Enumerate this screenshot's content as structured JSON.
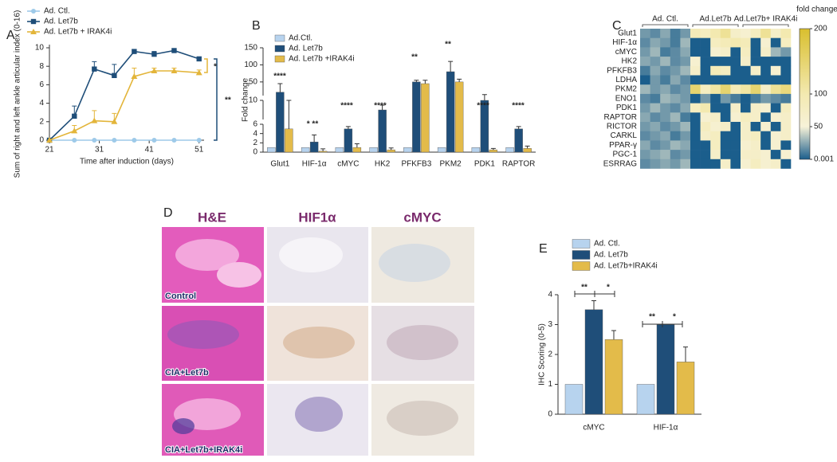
{
  "chart_data": [
    {
      "type": "line",
      "panel": "A",
      "y_label": "Sum of right and left ankle articular index (0-16)",
      "x_label": "Time after induction (days)",
      "x": [
        21,
        26,
        30,
        34,
        38,
        42,
        46,
        51
      ],
      "xlim": [
        21,
        52
      ],
      "xticks": [
        21,
        31,
        41,
        51
      ],
      "ylim": [
        0,
        10
      ],
      "yticks": [
        0,
        2,
        4,
        6,
        8,
        10
      ],
      "series": [
        {
          "name": "Ad. Ctl.",
          "color": "#9ecae9",
          "marker": "circle",
          "values": [
            0,
            0,
            0,
            0,
            0,
            0,
            0,
            0
          ]
        },
        {
          "name": "Ad. Let7b",
          "color": "#1f4e79",
          "marker": "square",
          "values": [
            0,
            2.6,
            7.7,
            7.0,
            9.6,
            9.3,
            9.7,
            8.8
          ],
          "errors": [
            0,
            1.1,
            0.8,
            1.2,
            0.2,
            0.3,
            0.2,
            0.2
          ]
        },
        {
          "name": "Ad. Let7b + IRAK4i",
          "color": "#e3b53a",
          "marker": "triangle",
          "values": [
            0,
            1.0,
            2.1,
            2.0,
            6.9,
            7.5,
            7.5,
            7.3
          ],
          "errors": [
            0,
            0.6,
            1.1,
            0.9,
            0.9,
            0.3,
            0.3,
            0.3
          ]
        }
      ],
      "annotations": [
        "*",
        "**"
      ]
    },
    {
      "type": "bar",
      "panel": "B",
      "y_label": "Fold change",
      "categories": [
        "Glut1",
        "HIF-1α",
        "cMYC",
        "HK2",
        "PFKFB3",
        "PKM2",
        "PDK1",
        "RAPTOR"
      ],
      "ylim": [
        0,
        150
      ],
      "y_segments": [
        [
          0,
          6
        ],
        [
          6,
          10
        ],
        [
          10,
          150
        ]
      ],
      "yticks": [
        0,
        2,
        4,
        6,
        10,
        50,
        100,
        150
      ],
      "series": [
        {
          "name": "Ad.Ctl.",
          "color": "#b7d3ee",
          "values": [
            1,
            1,
            1,
            1,
            1,
            1,
            1,
            1
          ]
        },
        {
          "name": "Ad. Let7b",
          "color": "#1f4e79",
          "values": [
            20,
            2.2,
            5,
            8,
            50,
            80,
            10,
            5
          ],
          "errors": [
            25,
            1.5,
            0.5,
            1,
            5,
            30,
            3,
            0.5
          ]
        },
        {
          "name": "Ad. Let7b +IRAK4i",
          "color": "#e3bb4a",
          "values": [
            5,
            0.2,
            1,
            0.5,
            45,
            50,
            0.5,
            0.8
          ],
          "errors": [
            5,
            0.5,
            0.8,
            0.4,
            10,
            8,
            0.3,
            0.5
          ]
        }
      ],
      "annotations": [
        "****",
        "* **",
        "****",
        "****",
        "**",
        "**",
        "****",
        "****"
      ]
    },
    {
      "type": "heatmap",
      "panel": "C",
      "colorbar_label": "fold change",
      "row_labels": [
        "Glut1",
        "HIF-1α",
        "cMYC",
        "HK2",
        "PFKFB3",
        "LDHA",
        "PKM2",
        "ENO1",
        "PDK1",
        "RAPTOR",
        "RICTOR",
        "CARKL",
        "PPAR-γ",
        "PGC-1",
        "ESRRAG"
      ],
      "column_groups": [
        "Ad. Ctl.",
        "Ad.Let7b",
        "Ad.Let7b+ IRAK4i"
      ],
      "color_stops": [
        {
          "value": 0.001,
          "color": "#1b5e8c"
        },
        {
          "value": 50,
          "color": "#f7f2d8"
        },
        {
          "value": 100,
          "color": "#f3e9b0"
        },
        {
          "value": 200,
          "color": "#d9bf2e"
        }
      ],
      "colorbar_ticks": [
        0.001,
        50,
        100,
        200
      ],
      "values": [
        [
          20,
          15,
          25,
          10,
          20,
          90,
          80,
          100,
          120,
          70,
          60,
          80,
          120,
          70,
          100
        ],
        [
          15,
          25,
          20,
          10,
          30,
          0.001,
          0.001,
          80,
          90,
          100,
          90,
          0.001,
          60,
          0.001,
          80
        ],
        [
          20,
          30,
          10,
          15,
          25,
          0.001,
          0.001,
          60,
          70,
          0.001,
          80,
          0.001,
          70,
          30,
          20
        ],
        [
          25,
          20,
          30,
          15,
          20,
          60,
          0.001,
          0.001,
          0.001,
          0.001,
          70,
          0.001,
          0.001,
          0.001,
          0.001
        ],
        [
          10,
          25,
          15,
          20,
          30,
          70,
          0.001,
          90,
          80,
          0.001,
          0.001,
          70,
          0.001,
          60,
          0.001
        ],
        [
          0.001,
          20,
          10,
          25,
          15,
          0.001,
          0.001,
          0.001,
          0.001,
          0.001,
          0.001,
          0.001,
          0.001,
          0.001,
          0.001
        ],
        [
          30,
          20,
          25,
          15,
          20,
          150,
          80,
          110,
          150,
          90,
          110,
          150,
          70,
          120,
          140
        ],
        [
          15,
          10,
          30,
          25,
          20,
          0.001,
          20,
          0.001,
          20,
          10,
          0.001,
          10,
          20,
          15,
          10
        ],
        [
          20,
          30,
          20,
          15,
          25,
          80,
          100,
          0.001,
          0.001,
          70,
          0.001,
          70,
          60,
          0.001,
          80
        ],
        [
          25,
          15,
          20,
          30,
          10,
          0.001,
          60,
          70,
          0.001,
          60,
          80,
          70,
          0.001,
          60,
          70
        ],
        [
          20,
          25,
          15,
          20,
          30,
          0.001,
          80,
          60,
          70,
          0.001,
          70,
          0.001,
          60,
          0.001,
          70
        ],
        [
          15,
          20,
          25,
          10,
          20,
          0.001,
          70,
          80,
          0.001,
          0.001,
          70,
          80,
          0.001,
          60,
          70
        ],
        [
          25,
          15,
          20,
          30,
          25,
          0.001,
          0.001,
          80,
          0.001,
          0.001,
          60,
          70,
          0.001,
          60,
          0.001
        ],
        [
          20,
          25,
          30,
          15,
          20,
          0.001,
          0.001,
          70,
          0.001,
          0.001,
          70,
          70,
          60,
          0.001,
          60
        ],
        [
          15,
          20,
          25,
          20,
          30,
          0.001,
          0.001,
          0.001,
          70,
          0.001,
          60,
          80,
          60,
          70,
          0.001
        ]
      ]
    },
    {
      "type": "bar",
      "panel": "E",
      "y_label": "IHC Scoring (0-5)",
      "categories": [
        "cMYC",
        "HIF-1α"
      ],
      "ylim": [
        0,
        4
      ],
      "yticks": [
        0,
        1,
        2,
        3,
        4
      ],
      "series": [
        {
          "name": "Ad. Ctl.",
          "color": "#b7d3ee",
          "values": [
            1,
            1
          ]
        },
        {
          "name": "Ad. Let7b",
          "color": "#1f4e79",
          "values": [
            3.5,
            3.0
          ],
          "errors": [
            0.3,
            0
          ]
        },
        {
          "name": "Ad. Let7b+IRAK4i",
          "color": "#e3bb4a",
          "values": [
            2.5,
            1.75
          ],
          "errors": [
            0.3,
            0.5
          ]
        }
      ],
      "annotations": [
        "**",
        "*",
        "**",
        "*"
      ]
    }
  ],
  "histology": {
    "panel": "D",
    "columns": [
      "H&E",
      "HIF1α",
      "cMYC"
    ],
    "rows": [
      "Control",
      "CIA+Let7b",
      "CIA+Let7b+IRAK4i"
    ]
  }
}
